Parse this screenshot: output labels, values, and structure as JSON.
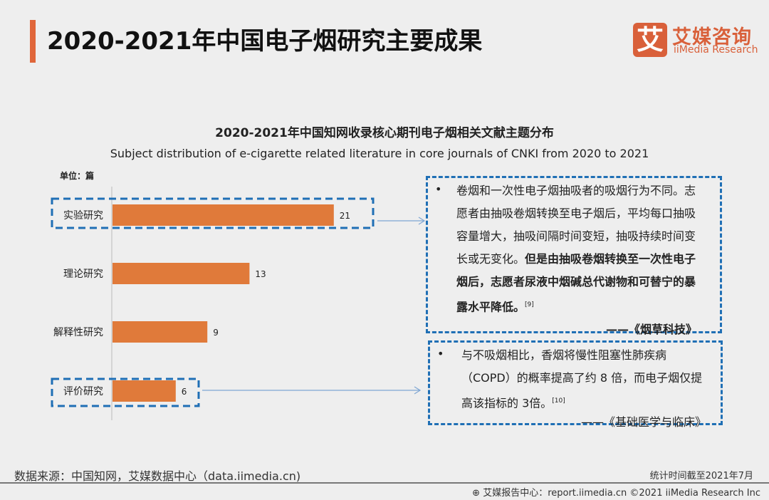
{
  "header": {
    "title": "2020-2021年中国电子烟研究主要成果"
  },
  "logo": {
    "mark": "艾",
    "cn": "艾媒咨询",
    "en": "iiMedia Research"
  },
  "chart_data": {
    "type": "bar",
    "orientation": "horizontal",
    "title": "2020-2021年中国知网收录核心期刊电子烟相关文献主题分布",
    "subtitle": "Subject distribution of e-cigarette related literature in core journals of CNKI from 2020 to 2021",
    "unit_label": "单位：篇",
    "categories": [
      "实验研究",
      "理论研究",
      "解释性研究",
      "评价研究"
    ],
    "values": [
      21,
      13,
      9,
      6
    ],
    "bar_color": "#e07a3a",
    "highlight_color": "#1f6fb5",
    "highlighted": [
      "实验研究",
      "评价研究"
    ],
    "grid": false
  },
  "callouts": [
    {
      "bullet": "•",
      "text_normal": "卷烟和一次性电子烟抽吸者的吸烟行为不同。志愿者由抽吸卷烟转换至电子烟后，平均每口抽吸容量增大，抽吸间隔时间变短，抽吸持续时间变长或无变化。",
      "text_bold": "但是由抽吸卷烟转换至一次性电子烟后，志愿者尿液中烟碱总代谢物和可替宁的暴露水平降低。",
      "ref": "[9]",
      "source": "——《烟草科技》"
    },
    {
      "bullet": "•",
      "text_normal": "与不吸烟相比，香烟将慢性阻塞性肺疾病（COPD）的概率提高了约 8 倍，而电子烟仅提高该指标的 3倍。",
      "text_bold": "",
      "ref": "[10]",
      "source": "——《基础医学与临床》"
    }
  ],
  "footer": {
    "source": "数据来源：中国知网，艾媒数据中心（data.iimedia.cn)",
    "date": "统计时间截至2021年7月",
    "copyright": "艾媒报告中心：report.iimedia.cn  ©2021  iiMedia Research  Inc",
    "globe_icon": "globe-icon"
  }
}
